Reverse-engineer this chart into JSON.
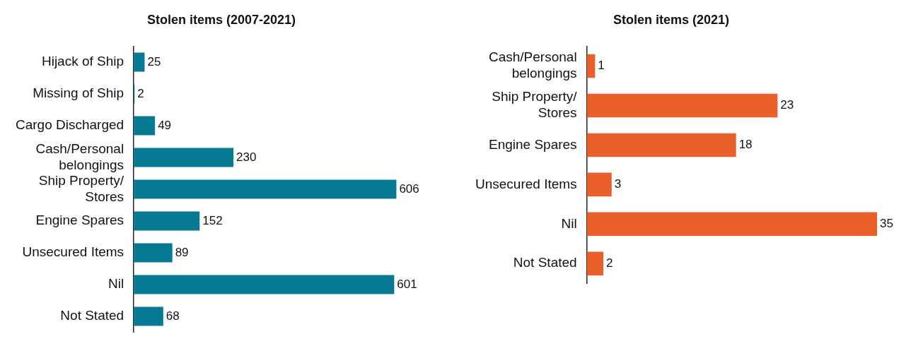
{
  "chart_data": [
    {
      "type": "bar",
      "orientation": "horizontal",
      "title": "Stolen items (2007-2021)",
      "categories": [
        "Hijack of Ship",
        "Missing of Ship",
        "Cargo Discharged",
        "Cash/Personal belongings",
        "Ship Property/Stores",
        "Engine Spares",
        "Unsecured Items",
        "Nil",
        "Not Stated"
      ],
      "values": [
        25,
        2,
        49,
        230,
        606,
        152,
        89,
        601,
        68
      ],
      "color": "#067a92",
      "data_labels": true,
      "grid": false,
      "tick_labels": "y",
      "legend": false
    },
    {
      "type": "bar",
      "orientation": "horizontal",
      "title": "Stolen items (2021)",
      "categories": [
        "Cash/Personal belongings",
        "Ship Property/Stores",
        "Engine Spares",
        "Unsecured Items",
        "Nil",
        "Not Stated"
      ],
      "values": [
        1,
        23,
        18,
        3,
        35,
        2
      ],
      "color": "#e9602a",
      "data_labels": true,
      "grid": false,
      "tick_labels": "y",
      "legend": false
    }
  ]
}
